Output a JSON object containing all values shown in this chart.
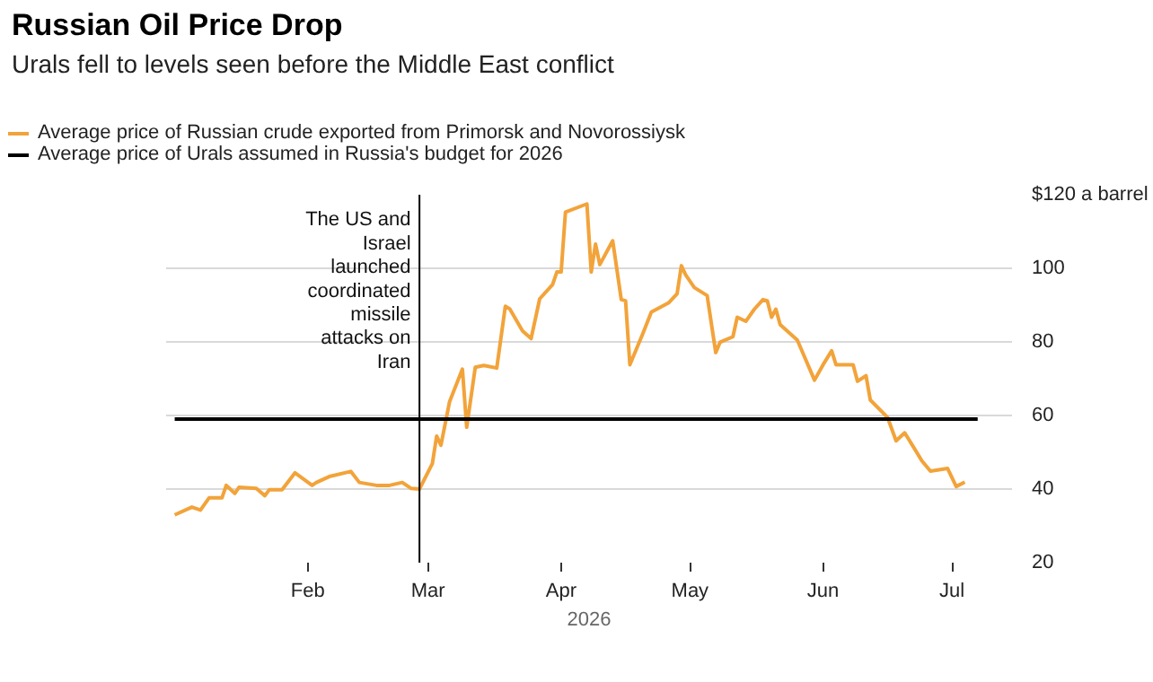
{
  "chart_data": {
    "type": "line",
    "title": "Russian Oil Price Drop",
    "subtitle": "Urals fell to levels seen before the Middle East conflict",
    "xlabel": "2026",
    "x": [
      "2026-01-01",
      "2026-01-05",
      "2026-01-07",
      "2026-01-09",
      "2026-01-12",
      "2026-01-13",
      "2026-01-15",
      "2026-01-16",
      "2026-01-20",
      "2026-01-22",
      "2026-01-23",
      "2026-01-26",
      "2026-01-29",
      "2026-02-02",
      "2026-02-03",
      "2026-02-06",
      "2026-02-11",
      "2026-02-13",
      "2026-02-17",
      "2026-02-20",
      "2026-02-23",
      "2026-02-25",
      "2026-02-27",
      "2026-03-02",
      "2026-03-03",
      "2026-03-04",
      "2026-03-06",
      "2026-03-09",
      "2026-03-10",
      "2026-03-12",
      "2026-03-14",
      "2026-03-17",
      "2026-03-19",
      "2026-03-20",
      "2026-03-23",
      "2026-03-25",
      "2026-03-27",
      "2026-03-30",
      "2026-03-31",
      "2026-04-01",
      "2026-04-02",
      "2026-04-07",
      "2026-04-08",
      "2026-04-09",
      "2026-04-10",
      "2026-04-13",
      "2026-04-15",
      "2026-04-16",
      "2026-04-17",
      "2026-04-20",
      "2026-04-22",
      "2026-04-26",
      "2026-04-28",
      "2026-04-29",
      "2026-04-30",
      "2026-05-02",
      "2026-05-05",
      "2026-05-07",
      "2026-05-08",
      "2026-05-11",
      "2026-05-12",
      "2026-05-14",
      "2026-05-16",
      "2026-05-18",
      "2026-05-19",
      "2026-05-20",
      "2026-05-21",
      "2026-05-22",
      "2026-05-26",
      "2026-05-30",
      "2026-06-01",
      "2026-06-03",
      "2026-06-04",
      "2026-06-08",
      "2026-06-09",
      "2026-06-11",
      "2026-06-12",
      "2026-06-16",
      "2026-06-18",
      "2026-06-20",
      "2026-06-24",
      "2026-06-26",
      "2026-06-30",
      "2026-07-02",
      "2026-07-04"
    ],
    "series": [
      {
        "name": "Average price of Russian crude exported from Primorsk and Novorossiysk",
        "color": "#f2a33a",
        "values": [
          33.0,
          35.1,
          34.3,
          37.6,
          37.6,
          41.0,
          38.8,
          40.5,
          40.2,
          38.2,
          39.8,
          39.8,
          44.4,
          41.0,
          41.8,
          43.4,
          44.8,
          41.8,
          41.0,
          41.0,
          41.8,
          40.2,
          40.0,
          46.9,
          54.4,
          51.9,
          63.7,
          72.6,
          56.8,
          73.1,
          73.6,
          72.9,
          89.7,
          89.0,
          83.0,
          80.9,
          91.7,
          95.6,
          99.0,
          99.0,
          115.3,
          117.5,
          99.0,
          106.6,
          101.0,
          107.5,
          91.5,
          91.2,
          73.8,
          82.2,
          88.1,
          90.6,
          93.1,
          100.7,
          98.2,
          94.8,
          92.6,
          77.1,
          79.9,
          81.4,
          86.7,
          85.6,
          88.9,
          91.5,
          91.2,
          86.7,
          88.9,
          84.7,
          80.5,
          69.6,
          73.8,
          77.6,
          73.8,
          73.8,
          69.3,
          70.8,
          64.2,
          59.5,
          53.1,
          55.3,
          47.7,
          44.9,
          45.6,
          40.7,
          41.9
        ]
      }
    ],
    "ref_lines": [
      {
        "axis": "y",
        "value": 59,
        "label": "Average price of Urals assumed in Russia's budget for 2026",
        "color": "#000000"
      },
      {
        "axis": "x",
        "value": "2026-02-27",
        "label": "The US and Israel launched coordinated missile attacks on Iran",
        "color": "#000000"
      }
    ],
    "xlim": [
      "2025-12-30",
      "2026-07-15"
    ],
    "xticks": [
      {
        "value": "2026-02-01",
        "label": "Feb"
      },
      {
        "value": "2026-03-01",
        "label": "Mar"
      },
      {
        "value": "2026-04-01",
        "label": "Apr"
      },
      {
        "value": "2026-05-01",
        "label": "May"
      },
      {
        "value": "2026-06-01",
        "label": "Jun"
      },
      {
        "value": "2026-07-01",
        "label": "Jul"
      }
    ],
    "ylim": [
      20,
      120
    ],
    "yticks": [
      20,
      40,
      60,
      80,
      100,
      {
        "value": 120,
        "label": "$120 a barrel"
      }
    ],
    "grid": "y",
    "legend": "top left",
    "marker": "none",
    "line_style": "solid"
  }
}
